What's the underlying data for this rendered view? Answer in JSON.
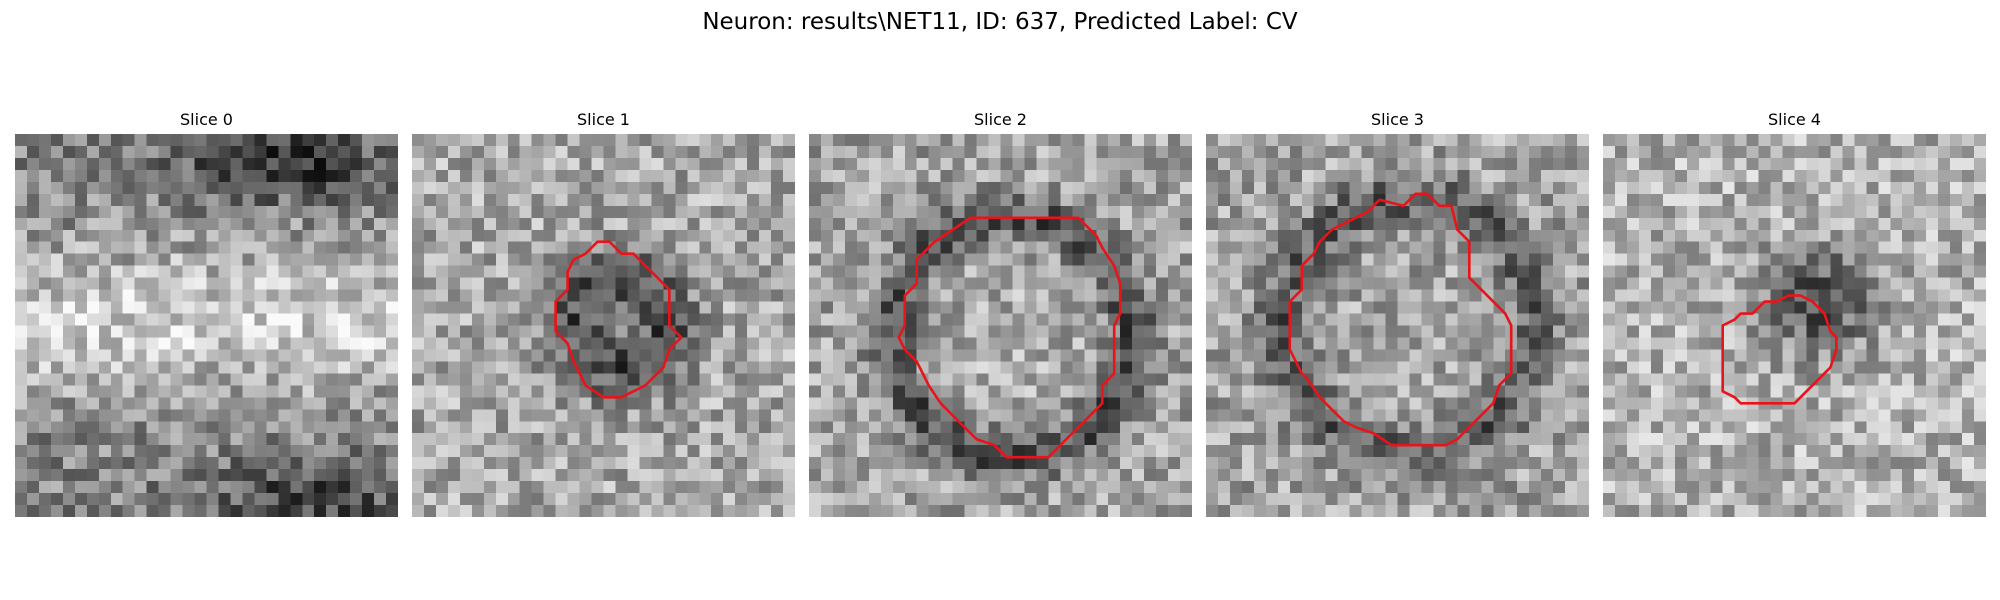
{
  "figure": {
    "title": "Neuron: results\\NET11, ID: 637, Predicted Label: CV"
  },
  "panels": [
    {
      "title": "Slice 0",
      "has_contour": false,
      "seed": 11,
      "pattern": "band"
    },
    {
      "title": "Slice 1",
      "has_contour": true,
      "seed": 23,
      "pattern": "small-dark-ring"
    },
    {
      "title": "Slice 2",
      "has_contour": true,
      "seed": 37,
      "pattern": "large-dark-ring"
    },
    {
      "title": "Slice 3",
      "has_contour": true,
      "seed": 51,
      "pattern": "large-ring-offset"
    },
    {
      "title": "Slice 4",
      "has_contour": true,
      "seed": 67,
      "pattern": "dark-blob"
    }
  ],
  "style": {
    "contour_color": "#e8141a"
  }
}
